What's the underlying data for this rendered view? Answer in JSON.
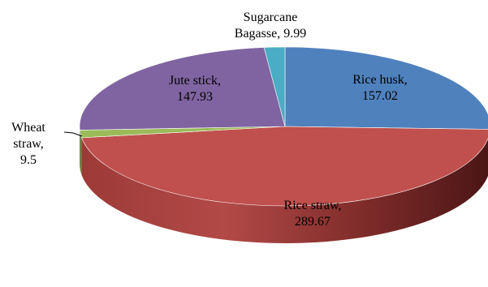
{
  "chart_data": {
    "type": "pie",
    "style": "3d",
    "legend": "none",
    "slices": [
      {
        "name": "Rice husk",
        "value": 157.02,
        "color": "#4F81BD",
        "label_lines": [
          "Rice husk,",
          "157.02"
        ]
      },
      {
        "name": "Rice straw",
        "value": 289.67,
        "color": "#C0504D",
        "label_lines": [
          "Rice straw,",
          "289.67"
        ]
      },
      {
        "name": "Wheat straw",
        "value": 9.5,
        "color": "#9BBB59",
        "label_lines": [
          "Wheat",
          "straw,",
          "9.5"
        ]
      },
      {
        "name": "Jute stick",
        "value": 147.93,
        "color": "#8064A2",
        "label_lines": [
          "Jute stick,",
          "147.93"
        ]
      },
      {
        "name": "Sugarcane Bagasse",
        "value": 9.99,
        "color": "#4BACC6",
        "label_lines": [
          "Sugarcane",
          "Bagasse, 9.99"
        ]
      }
    ]
  }
}
